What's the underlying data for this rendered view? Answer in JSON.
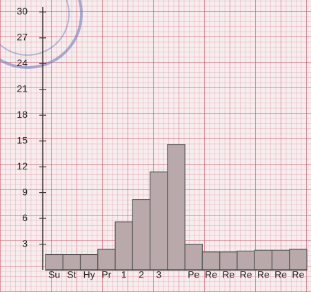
{
  "chart_data": {
    "type": "bar",
    "categories": [
      "Su",
      "St",
      "Hy",
      "Pr",
      "1",
      "2",
      "3",
      null,
      "Pe",
      "Re",
      "Re",
      "Re",
      "Re",
      "Re",
      "Re"
    ],
    "values": [
      1.8,
      1.8,
      1.8,
      2.4,
      5.6,
      8.2,
      11.4,
      14.6,
      3,
      2.1,
      2.1,
      2.2,
      2.3,
      2.3,
      2.4
    ],
    "color": "#b9a9aa",
    "ylim": [
      0,
      31
    ],
    "yticks": [
      3,
      6,
      9,
      12,
      15,
      18,
      21,
      24,
      27,
      30
    ]
  }
}
